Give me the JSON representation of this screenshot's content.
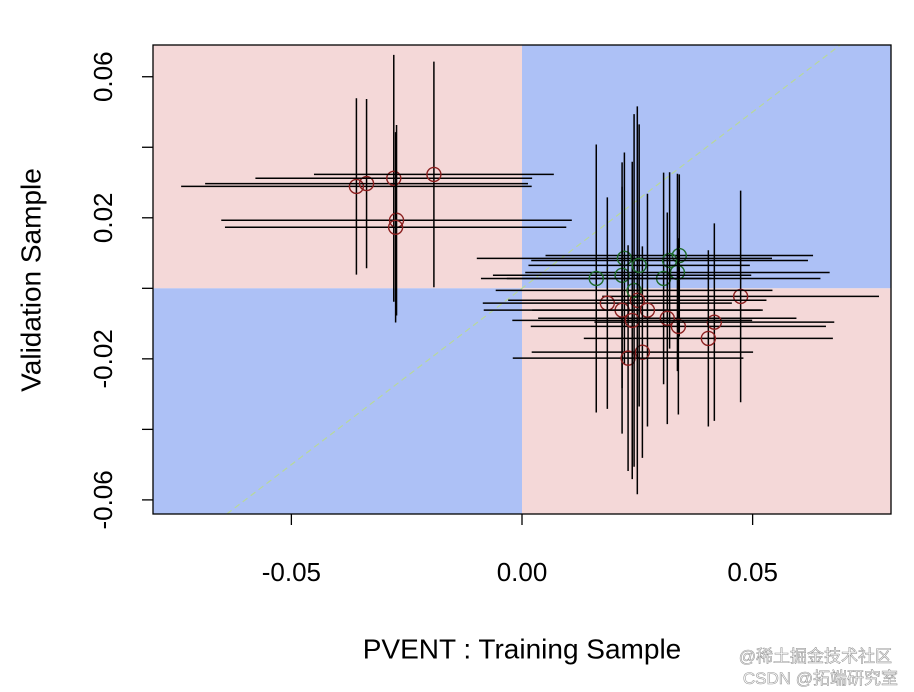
{
  "chart_data": {
    "type": "scatter",
    "xlabel": "PVENT : Training Sample",
    "ylabel": "Validation Sample",
    "xlim": [
      -0.08,
      0.08
    ],
    "ylim": [
      -0.064,
      0.069
    ],
    "xticks": [
      -0.05,
      {
        "value": 0,
        "label": "0.00"
      },
      0.05
    ],
    "yticks": [
      0.06,
      {
        "value": 0.04,
        "label": null
      },
      0.02,
      {
        "value": 0,
        "label": null
      },
      -0.02,
      {
        "value": -0.04,
        "label": null
      },
      -0.06
    ],
    "quadrant_colors": {
      "same_sign": "#adc1f6",
      "opposite_sign": "#f4d8d8"
    },
    "diagonal_color": "#b8d89a",
    "error_bar_color": "#000000",
    "x": [
      -0.0359,
      -0.0337,
      -0.0278,
      -0.0191,
      -0.0272,
      -0.0274,
      0.0474,
      0.0341,
      0.0337,
      0.0307,
      0.032,
      0.0222,
      0.0217,
      0.0161,
      0.0185,
      0.0217,
      0.0272,
      0.0315,
      0.0339,
      0.0417,
      0.0404,
      0.0261,
      0.023,
      0.0243,
      0.025,
      0.0239,
      0.0254
    ],
    "y": [
      0.0289,
      0.0297,
      0.0312,
      0.0323,
      0.0193,
      0.0173,
      -0.0023,
      0.0093,
      0.0045,
      0.0028,
      0.0079,
      0.0085,
      0.0037,
      0.0028,
      -0.0042,
      -0.0062,
      -0.0062,
      -0.0085,
      -0.0108,
      -0.0096,
      -0.0142,
      -0.0181,
      -0.0198,
      -0.0006,
      -0.0034,
      -0.0091,
      0.0065
    ],
    "xerr": [
      0.038,
      0.035,
      0.03,
      0.026,
      0.038,
      0.037,
      0.03,
      0.029,
      0.033,
      0.034,
      0.03,
      0.032,
      0.028,
      0.025,
      0.027,
      0.03,
      0.025,
      0.028,
      0.032,
      0.026,
      0.027,
      0.024,
      0.025,
      0.03,
      0.028,
      0.026,
      0.024
    ],
    "yerr": [
      0.025,
      0.024,
      0.035,
      0.032,
      0.027,
      0.027,
      0.03,
      0.023,
      0.028,
      0.03,
      0.025,
      0.03,
      0.032,
      0.038,
      0.03,
      0.035,
      0.033,
      0.03,
      0.025,
      0.028,
      0.025,
      0.03,
      0.032,
      0.05,
      0.055,
      0.045,
      0.04
    ],
    "point_colors": [
      "#8b2020",
      "#8b2020",
      "#8b2020",
      "#8b2020",
      "#8b2020",
      "#8b2020",
      "#8b2020",
      "#1f6b2a",
      "#1f6b2a",
      "#1f6b2a",
      "#1f6b2a",
      "#1f6b2a",
      "#1f6b2a",
      "#1f6b2a",
      "#8b2020",
      "#8b2020",
      "#8b2020",
      "#8b2020",
      "#8b2020",
      "#8b2020",
      "#8b2020",
      "#8b2020",
      "#8b2020",
      "#1f6b2a",
      "#8b2020",
      "#8b2020",
      "#1f6b2a"
    ]
  },
  "watermark": [
    "@稀土掘金技术社区",
    "CSDN @拓端研究室"
  ]
}
